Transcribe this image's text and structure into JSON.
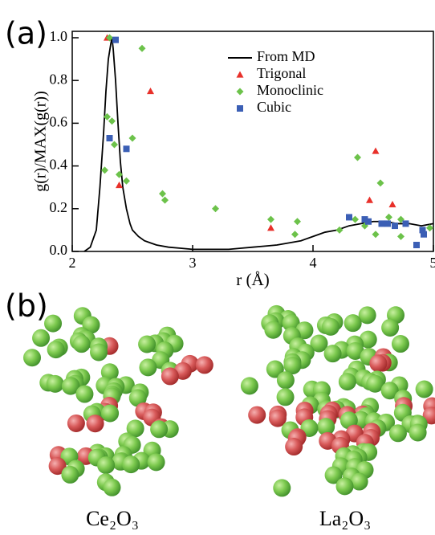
{
  "panel_labels": [
    "(a)",
    "(b)"
  ],
  "chart_data": {
    "type": "scatter",
    "x_label": "r (Å)",
    "y_label": "g(r)/MAX(g(r))",
    "xlim": [
      2,
      5
    ],
    "xticks": [
      2,
      3,
      4,
      5
    ],
    "ylim": [
      0,
      1.03
    ],
    "yticks": [
      {
        "value": 0,
        "label": "0.0"
      },
      0.2,
      0.4,
      0.6,
      0.8,
      {
        "value": 1,
        "label": "1.0"
      }
    ],
    "legend": "top-right",
    "series": [
      {
        "name": "From MD",
        "color": "#000000",
        "marker": "line",
        "x": [
          2.1,
          2.15,
          2.2,
          2.23,
          2.26,
          2.28,
          2.3,
          2.32,
          2.33,
          2.34,
          2.36,
          2.38,
          2.4,
          2.42,
          2.45,
          2.48,
          2.5,
          2.55,
          2.6,
          2.65,
          2.7,
          2.8,
          2.9,
          3.0,
          3.1,
          3.2,
          3.3,
          3.4,
          3.5,
          3.6,
          3.7,
          3.8,
          3.9,
          4.0,
          4.1,
          4.2,
          4.3,
          4.4,
          4.5,
          4.6,
          4.7,
          4.8,
          4.9,
          5.0
        ],
        "values": [
          0,
          0.02,
          0.1,
          0.3,
          0.55,
          0.75,
          0.9,
          0.97,
          1.0,
          0.95,
          0.8,
          0.6,
          0.42,
          0.3,
          0.2,
          0.13,
          0.1,
          0.07,
          0.05,
          0.04,
          0.03,
          0.02,
          0.015,
          0.01,
          0.01,
          0.01,
          0.01,
          0.015,
          0.02,
          0.025,
          0.03,
          0.04,
          0.05,
          0.07,
          0.09,
          0.1,
          0.12,
          0.13,
          0.14,
          0.14,
          0.13,
          0.13,
          0.12,
          0.13
        ]
      },
      {
        "name": "Trigonal",
        "color": "#e8302a",
        "marker": "triangle",
        "x": [
          2.29,
          2.65,
          2.39,
          3.65,
          4.52,
          4.47,
          4.66
        ],
        "values": [
          1.0,
          0.75,
          0.31,
          0.11,
          0.47,
          0.24,
          0.22
        ]
      },
      {
        "name": "Monoclinic",
        "color": "#6cc24a",
        "marker": "diamond",
        "x": [
          2.31,
          2.58,
          2.29,
          2.33,
          2.5,
          2.35,
          2.27,
          2.39,
          2.45,
          2.75,
          2.77,
          3.19,
          3.65,
          3.87,
          3.85,
          4.22,
          4.37,
          4.56,
          4.35,
          4.43,
          4.52,
          4.63,
          4.73,
          4.73,
          4.97
        ],
        "values": [
          1.0,
          0.95,
          0.63,
          0.61,
          0.53,
          0.5,
          0.38,
          0.36,
          0.33,
          0.27,
          0.24,
          0.2,
          0.15,
          0.14,
          0.08,
          0.1,
          0.44,
          0.32,
          0.15,
          0.12,
          0.08,
          0.16,
          0.15,
          0.07,
          0.11
        ]
      },
      {
        "name": "Cubic",
        "color": "#3b5fb5",
        "marker": "square",
        "x": [
          2.36,
          2.31,
          2.45,
          4.3,
          4.43,
          4.46,
          4.57,
          4.62,
          4.68,
          4.77,
          4.91,
          4.86,
          4.92
        ],
        "values": [
          0.99,
          0.53,
          0.48,
          0.16,
          0.15,
          0.14,
          0.13,
          0.13,
          0.12,
          0.13,
          0.1,
          0.03,
          0.08
        ]
      }
    ]
  },
  "structures": [
    {
      "label": "Ce₂O₃"
    },
    {
      "label": "La₂O₃"
    }
  ]
}
